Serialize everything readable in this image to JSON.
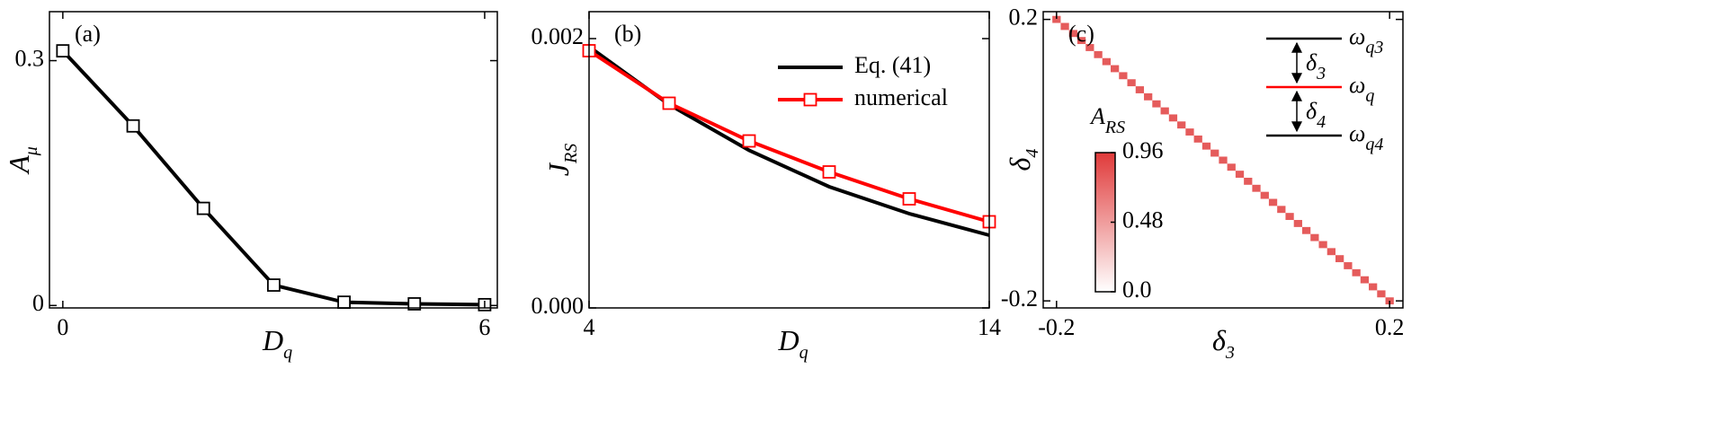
{
  "chart_data": [
    {
      "type": "line",
      "panel_label": "(a)",
      "xlabel": [
        "D",
        "q"
      ],
      "ylabel": [
        "A",
        "μ"
      ],
      "x": [
        0,
        1,
        2,
        3,
        4,
        5,
        6
      ],
      "series": [
        {
          "color": "#000000",
          "marker": "square",
          "values": [
            0.312,
            0.22,
            0.119,
            0.025,
            0.004,
            0.002,
            0.001
          ]
        }
      ],
      "xlim": [
        -0.19,
        6.18
      ],
      "ylim": [
        -0.003,
        0.36
      ],
      "xticks": [
        0,
        6
      ],
      "yticks": [
        0,
        0.3
      ]
    },
    {
      "type": "line",
      "panel_label": "(b)",
      "xlabel": [
        "D",
        "q"
      ],
      "ylabel": [
        "J",
        "RS"
      ],
      "x": [
        4,
        6,
        8,
        10,
        12,
        14
      ],
      "series": [
        {
          "name": "Eq. (41)",
          "color": "#000000",
          "marker": null,
          "values": [
            0.00194,
            0.00151,
            0.00117,
            0.0009,
            0.0007,
            0.00054
          ]
        },
        {
          "name": "numerical",
          "color": "#ff0000",
          "marker": "square",
          "values": [
            0.00191,
            0.00152,
            0.00124,
            0.00101,
            0.00081,
            0.00064
          ]
        }
      ],
      "xlim": [
        4,
        14
      ],
      "ylim": [
        0,
        0.0022
      ],
      "xticks": [
        4,
        14
      ],
      "yticks": [
        {
          "value": 0,
          "label": "0.000"
        },
        0.002
      ],
      "legend": "upper right"
    },
    {
      "type": "heatmap",
      "panel_label": "(c)",
      "xlabel": [
        "δ",
        "3"
      ],
      "ylabel": [
        "δ",
        "4"
      ],
      "x": [
        -0.2,
        -0.19,
        -0.18,
        -0.17,
        -0.16,
        -0.15,
        -0.14,
        -0.13,
        -0.12,
        -0.11,
        -0.1,
        -0.09,
        -0.08,
        -0.07,
        -0.06,
        -0.05,
        -0.04,
        -0.03,
        -0.02,
        -0.01,
        0,
        0.01,
        0.02,
        0.03,
        0.04,
        0.05,
        0.06,
        0.07,
        0.08,
        0.09,
        0.1,
        0.11,
        0.12,
        0.13,
        0.14,
        0.15,
        0.16,
        0.17,
        0.18,
        0.19,
        0.2
      ],
      "y": [
        0.2,
        0.19,
        0.18,
        0.17,
        0.16,
        0.15,
        0.14,
        0.13,
        0.12,
        0.11,
        0.1,
        0.09,
        0.08,
        0.07,
        0.06,
        0.05,
        0.04,
        0.03,
        0.02,
        0.01,
        0,
        -0.01,
        -0.02,
        -0.03,
        -0.04,
        -0.05,
        -0.06,
        -0.07,
        -0.08,
        -0.09,
        -0.1,
        -0.11,
        -0.12,
        -0.13,
        -0.14,
        -0.15,
        -0.16,
        -0.17,
        -0.18,
        -0.19,
        -0.2
      ],
      "values": [
        0.8,
        0.8,
        0.8,
        0.8,
        0.8,
        0.8,
        0.8,
        0.8,
        0.8,
        0.8,
        0.8,
        0.8,
        0.8,
        0.8,
        0.8,
        0.8,
        0.8,
        0.8,
        0.8,
        0.8,
        0.8,
        0.8,
        0.8,
        0.8,
        0.8,
        0.8,
        0.8,
        0.8,
        0.8,
        0.8,
        0.8,
        0.8,
        0.8,
        0.8,
        0.8,
        0.8,
        0.8,
        0.8,
        0.8,
        0.8,
        0.8
      ],
      "cmap": [
        "#ffffff",
        "#e03a3a"
      ],
      "colorbar": {
        "label": [
          "A",
          "RS"
        ],
        "lim": [
          0,
          0.96
        ],
        "ticks": [
          {
            "value": 0,
            "label": "0.0"
          },
          0.48,
          0.96
        ]
      },
      "xlim": [
        -0.216,
        0.216
      ],
      "ylim": [
        -0.21,
        0.211
      ],
      "xticks": [
        -0.2,
        0.2
      ],
      "yticks": [
        -0.2,
        0.2
      ],
      "inset": {
        "levels": [
          {
            "label": [
              "ω",
              "q3"
            ],
            "color": "#000000"
          },
          {
            "label": [
              "ω",
              "q"
            ],
            "color": "#ff0000"
          },
          {
            "label": [
              "ω",
              "q4"
            ],
            "color": "#000000"
          }
        ],
        "gaps": [
          [
            "δ",
            "3"
          ],
          [
            "δ",
            "4"
          ]
        ]
      }
    }
  ]
}
